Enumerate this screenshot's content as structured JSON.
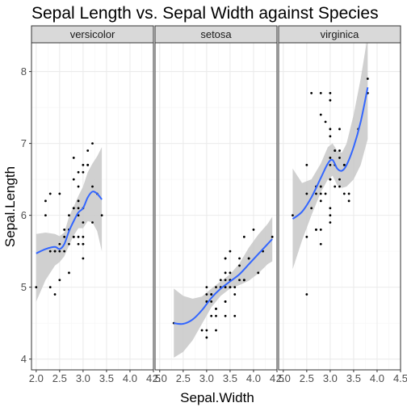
{
  "chart_data": {
    "type": "scatter",
    "title": "Sepal Length vs. Sepal Width against Species",
    "xlabel": "Sepal.Width",
    "ylabel": "Sepal.Length",
    "xlim": [
      1.9,
      4.5
    ],
    "ylim": [
      3.85,
      8.4
    ],
    "x_ticks": [
      2.0,
      2.5,
      3.0,
      3.5,
      4.0,
      4.5
    ],
    "x_tick_labels": [
      "2.0",
      "2.5",
      "3.0",
      "3.5",
      "4.0",
      "4.5"
    ],
    "y_ticks": [
      4,
      5,
      6,
      7,
      8
    ],
    "y_tick_labels": [
      "4",
      "5",
      "6",
      "7",
      "8"
    ],
    "grid": true,
    "facets": [
      {
        "name": "versicolor",
        "points": [
          [
            3.2,
            7.0
          ],
          [
            3.2,
            6.4
          ],
          [
            3.1,
            6.9
          ],
          [
            2.3,
            5.5
          ],
          [
            2.8,
            6.5
          ],
          [
            2.8,
            5.7
          ],
          [
            3.3,
            6.3
          ],
          [
            2.4,
            4.9
          ],
          [
            2.9,
            6.6
          ],
          [
            2.7,
            5.2
          ],
          [
            2.0,
            5.0
          ],
          [
            3.0,
            5.9
          ],
          [
            2.2,
            6.0
          ],
          [
            2.9,
            6.1
          ],
          [
            2.9,
            5.6
          ],
          [
            3.1,
            6.7
          ],
          [
            3.0,
            5.6
          ],
          [
            2.7,
            5.8
          ],
          [
            2.2,
            6.2
          ],
          [
            2.5,
            5.6
          ],
          [
            3.2,
            5.9
          ],
          [
            2.8,
            6.1
          ],
          [
            2.5,
            6.3
          ],
          [
            2.8,
            6.1
          ],
          [
            2.9,
            6.4
          ],
          [
            3.0,
            6.6
          ],
          [
            2.8,
            6.8
          ],
          [
            3.0,
            6.7
          ],
          [
            2.9,
            6.0
          ],
          [
            2.6,
            5.7
          ],
          [
            2.4,
            5.5
          ],
          [
            2.4,
            5.5
          ],
          [
            2.7,
            5.8
          ],
          [
            2.7,
            6.0
          ],
          [
            3.0,
            5.4
          ],
          [
            3.4,
            6.0
          ],
          [
            3.1,
            6.7
          ],
          [
            2.3,
            6.3
          ],
          [
            3.0,
            5.6
          ],
          [
            2.5,
            5.5
          ],
          [
            2.6,
            5.5
          ],
          [
            3.0,
            6.1
          ],
          [
            2.6,
            5.8
          ],
          [
            2.3,
            5.0
          ],
          [
            2.7,
            5.6
          ],
          [
            3.0,
            5.7
          ],
          [
            2.9,
            5.7
          ],
          [
            2.9,
            6.2
          ],
          [
            2.5,
            5.1
          ],
          [
            2.8,
            5.7
          ]
        ],
        "smooth": [
          [
            2.0,
            5.47
          ],
          [
            2.2,
            5.53
          ],
          [
            2.4,
            5.56
          ],
          [
            2.5,
            5.53
          ],
          [
            2.6,
            5.6
          ],
          [
            2.7,
            5.78
          ],
          [
            2.8,
            5.92
          ],
          [
            2.9,
            6.04
          ],
          [
            3.0,
            6.1
          ],
          [
            3.1,
            6.25
          ],
          [
            3.2,
            6.33
          ],
          [
            3.3,
            6.3
          ],
          [
            3.4,
            6.22
          ]
        ],
        "band_upper": [
          [
            2.0,
            5.74
          ],
          [
            2.2,
            5.76
          ],
          [
            2.4,
            5.74
          ],
          [
            2.5,
            5.71
          ],
          [
            2.6,
            5.76
          ],
          [
            2.7,
            5.98
          ],
          [
            2.8,
            6.12
          ],
          [
            2.9,
            6.27
          ],
          [
            3.0,
            6.4
          ],
          [
            3.1,
            6.6
          ],
          [
            3.2,
            6.72
          ],
          [
            3.3,
            6.82
          ],
          [
            3.4,
            6.95
          ]
        ],
        "band_lower": [
          [
            2.0,
            4.8
          ],
          [
            2.2,
            5.1
          ],
          [
            2.4,
            5.3
          ],
          [
            2.5,
            5.35
          ],
          [
            2.6,
            5.43
          ],
          [
            2.7,
            5.58
          ],
          [
            2.8,
            5.72
          ],
          [
            2.9,
            5.82
          ],
          [
            3.0,
            5.82
          ],
          [
            3.1,
            5.92
          ],
          [
            3.2,
            5.9
          ],
          [
            3.3,
            5.78
          ],
          [
            3.4,
            5.5
          ]
        ]
      },
      {
        "name": "setosa",
        "points": [
          [
            3.5,
            5.1
          ],
          [
            3.0,
            4.9
          ],
          [
            3.2,
            4.7
          ],
          [
            3.1,
            4.6
          ],
          [
            3.6,
            5.0
          ],
          [
            3.9,
            5.4
          ],
          [
            3.4,
            4.6
          ],
          [
            3.4,
            5.0
          ],
          [
            2.9,
            4.4
          ],
          [
            3.1,
            4.9
          ],
          [
            3.7,
            5.4
          ],
          [
            3.4,
            4.8
          ],
          [
            3.0,
            4.8
          ],
          [
            3.0,
            4.3
          ],
          [
            4.0,
            5.8
          ],
          [
            4.4,
            5.7
          ],
          [
            3.9,
            5.4
          ],
          [
            3.5,
            5.1
          ],
          [
            3.8,
            5.7
          ],
          [
            3.8,
            5.1
          ],
          [
            3.4,
            5.4
          ],
          [
            3.7,
            5.1
          ],
          [
            3.6,
            4.6
          ],
          [
            3.3,
            5.1
          ],
          [
            3.4,
            4.8
          ],
          [
            3.0,
            5.0
          ],
          [
            3.4,
            5.0
          ],
          [
            3.5,
            5.2
          ],
          [
            3.4,
            5.2
          ],
          [
            3.2,
            4.7
          ],
          [
            3.1,
            4.8
          ],
          [
            3.4,
            5.4
          ],
          [
            4.1,
            5.2
          ],
          [
            4.2,
            5.5
          ],
          [
            3.1,
            4.9
          ],
          [
            3.2,
            5.0
          ],
          [
            3.5,
            5.5
          ],
          [
            3.6,
            4.9
          ],
          [
            3.0,
            4.4
          ],
          [
            3.4,
            5.1
          ],
          [
            3.5,
            5.0
          ],
          [
            2.3,
            4.5
          ],
          [
            3.2,
            4.4
          ],
          [
            3.5,
            5.0
          ],
          [
            3.8,
            5.1
          ],
          [
            3.0,
            4.8
          ],
          [
            3.8,
            5.1
          ],
          [
            3.2,
            4.6
          ],
          [
            3.7,
            5.3
          ],
          [
            3.3,
            5.0
          ]
        ],
        "smooth": [
          [
            2.3,
            4.5
          ],
          [
            2.5,
            4.49
          ],
          [
            2.7,
            4.55
          ],
          [
            2.9,
            4.68
          ],
          [
            3.1,
            4.85
          ],
          [
            3.3,
            4.98
          ],
          [
            3.5,
            5.08
          ],
          [
            3.7,
            5.18
          ],
          [
            3.9,
            5.32
          ],
          [
            4.1,
            5.46
          ],
          [
            4.3,
            5.6
          ],
          [
            4.4,
            5.67
          ]
        ],
        "band_upper": [
          [
            2.3,
            4.98
          ],
          [
            2.5,
            4.88
          ],
          [
            2.7,
            4.84
          ],
          [
            2.9,
            4.87
          ],
          [
            3.1,
            4.98
          ],
          [
            3.3,
            5.08
          ],
          [
            3.5,
            5.18
          ],
          [
            3.7,
            5.33
          ],
          [
            3.9,
            5.55
          ],
          [
            4.1,
            5.73
          ],
          [
            4.3,
            5.88
          ],
          [
            4.4,
            5.98
          ]
        ],
        "band_lower": [
          [
            2.3,
            4.02
          ],
          [
            2.5,
            4.1
          ],
          [
            2.7,
            4.26
          ],
          [
            2.9,
            4.49
          ],
          [
            3.1,
            4.72
          ],
          [
            3.3,
            4.88
          ],
          [
            3.5,
            4.98
          ],
          [
            3.7,
            5.03
          ],
          [
            3.9,
            5.09
          ],
          [
            4.1,
            5.19
          ],
          [
            4.3,
            5.32
          ],
          [
            4.4,
            5.36
          ]
        ]
      },
      {
        "name": "virginica",
        "points": [
          [
            3.3,
            6.3
          ],
          [
            2.7,
            5.8
          ],
          [
            3.0,
            7.1
          ],
          [
            2.9,
            6.3
          ],
          [
            3.0,
            6.5
          ],
          [
            3.0,
            7.6
          ],
          [
            2.5,
            4.9
          ],
          [
            2.9,
            7.3
          ],
          [
            2.5,
            6.7
          ],
          [
            3.6,
            7.2
          ],
          [
            3.2,
            6.5
          ],
          [
            2.7,
            6.4
          ],
          [
            3.0,
            6.8
          ],
          [
            2.5,
            5.7
          ],
          [
            2.8,
            5.8
          ],
          [
            3.2,
            6.4
          ],
          [
            3.0,
            6.5
          ],
          [
            3.8,
            7.7
          ],
          [
            2.6,
            7.7
          ],
          [
            2.2,
            6.0
          ],
          [
            3.2,
            6.9
          ],
          [
            2.8,
            5.6
          ],
          [
            2.8,
            7.7
          ],
          [
            2.7,
            6.3
          ],
          [
            3.3,
            6.7
          ],
          [
            3.2,
            7.2
          ],
          [
            2.8,
            6.2
          ],
          [
            3.0,
            6.1
          ],
          [
            2.8,
            6.4
          ],
          [
            3.0,
            7.2
          ],
          [
            2.8,
            7.4
          ],
          [
            3.8,
            7.9
          ],
          [
            2.8,
            6.4
          ],
          [
            2.8,
            6.3
          ],
          [
            2.6,
            6.1
          ],
          [
            3.0,
            7.7
          ],
          [
            3.4,
            6.3
          ],
          [
            3.1,
            6.4
          ],
          [
            3.0,
            6.0
          ],
          [
            3.1,
            6.9
          ],
          [
            3.1,
            6.7
          ],
          [
            3.1,
            6.9
          ],
          [
            2.7,
            5.8
          ],
          [
            3.2,
            6.8
          ],
          [
            3.3,
            6.7
          ],
          [
            3.0,
            6.7
          ],
          [
            2.5,
            6.3
          ],
          [
            3.0,
            6.5
          ],
          [
            3.4,
            6.2
          ],
          [
            3.0,
            5.9
          ]
        ],
        "smooth": [
          [
            2.2,
            5.95
          ],
          [
            2.4,
            6.05
          ],
          [
            2.6,
            6.25
          ],
          [
            2.8,
            6.52
          ],
          [
            2.95,
            6.72
          ],
          [
            3.05,
            6.77
          ],
          [
            3.15,
            6.65
          ],
          [
            3.25,
            6.62
          ],
          [
            3.35,
            6.7
          ],
          [
            3.5,
            6.95
          ],
          [
            3.65,
            7.3
          ],
          [
            3.8,
            7.78
          ]
        ],
        "band_upper": [
          [
            2.2,
            6.65
          ],
          [
            2.4,
            6.45
          ],
          [
            2.6,
            6.5
          ],
          [
            2.8,
            6.72
          ],
          [
            2.95,
            6.95
          ],
          [
            3.05,
            7.0
          ],
          [
            3.15,
            6.9
          ],
          [
            3.25,
            6.87
          ],
          [
            3.35,
            7.0
          ],
          [
            3.5,
            7.4
          ],
          [
            3.65,
            7.9
          ],
          [
            3.8,
            8.5
          ]
        ],
        "band_lower": [
          [
            2.2,
            5.25
          ],
          [
            2.4,
            5.65
          ],
          [
            2.6,
            6.0
          ],
          [
            2.8,
            6.32
          ],
          [
            2.95,
            6.5
          ],
          [
            3.05,
            6.55
          ],
          [
            3.15,
            6.42
          ],
          [
            3.25,
            6.38
          ],
          [
            3.35,
            6.4
          ],
          [
            3.5,
            6.5
          ],
          [
            3.65,
            6.7
          ],
          [
            3.8,
            7.06
          ]
        ]
      }
    ]
  },
  "colors": {
    "panel_background": "#ffffff",
    "grid_major": "#ebebeb",
    "grid_minor": "#f5f5f5",
    "strip_background": "#d9d9d9",
    "panel_border": "#333333",
    "smooth_line": "#3366ff",
    "confidence_band": "#c8c8c8",
    "points": "#000000",
    "axis_text": "#4d4d4d",
    "title_text": "#000000"
  }
}
